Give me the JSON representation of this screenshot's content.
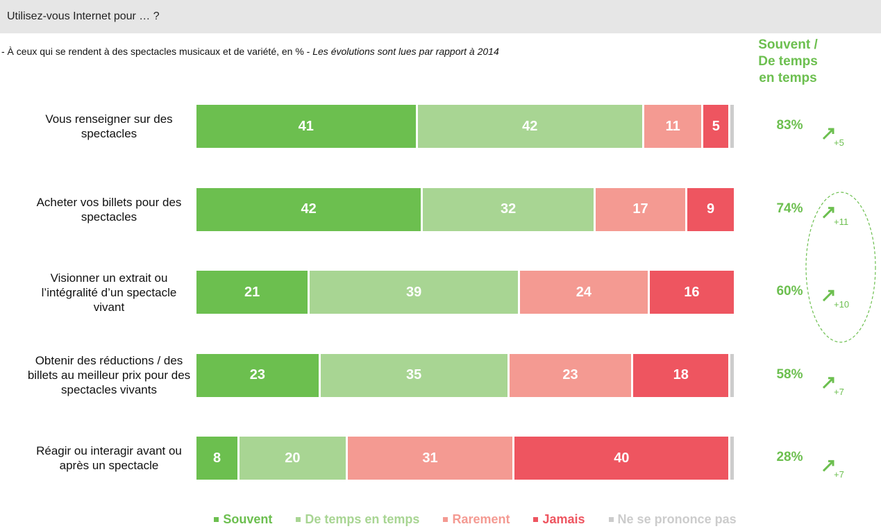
{
  "header": "Utilisez-vous Internet pour … ?",
  "chart_data": {
    "type": "stacked-bar-horizontal",
    "subtitle": "- À ceux qui se rendent à des spectacles musicaux et de variété, en % - ",
    "subtitle_note": "Les évolutions sont lues par rapport à 2014",
    "categories": [
      "Vous renseigner sur des spectacles",
      "Acheter vos billets pour des spectacles",
      "Visionner un extrait ou l’intégralité d’un spectacle vivant",
      "Obtenir des réductions / des billets au meilleur prix pour des spectacles vivants",
      "Réagir ou interagir avant ou après un spectacle"
    ],
    "series": [
      {
        "name": "Souvent",
        "color": "#6cbf4f",
        "values": [
          41,
          42,
          21,
          23,
          8
        ]
      },
      {
        "name": "De temps en temps",
        "color": "#a8d593",
        "values": [
          42,
          32,
          39,
          35,
          20
        ]
      },
      {
        "name": "Rarement",
        "color": "#f49a92",
        "values": [
          11,
          17,
          24,
          23,
          31
        ]
      },
      {
        "name": "Jamais",
        "color": "#ee5560",
        "values": [
          5,
          9,
          16,
          18,
          40
        ]
      },
      {
        "name": "Ne se prononce pas",
        "color": "#cccccc",
        "values": [
          1,
          0,
          0,
          1,
          1
        ]
      }
    ],
    "summary": {
      "title": [
        "Souvent /",
        "De temps",
        "en temps"
      ],
      "color": "#6cbf4f",
      "values": [
        83,
        74,
        60,
        58,
        28
      ],
      "value_labels": [
        "83%",
        "74%",
        "60%",
        "58%",
        "28%"
      ]
    },
    "evolutions": {
      "values": [
        5,
        11,
        10,
        7,
        7
      ],
      "value_labels": [
        "+5",
        "+11",
        "+10",
        "+7",
        "+7"
      ]
    }
  }
}
